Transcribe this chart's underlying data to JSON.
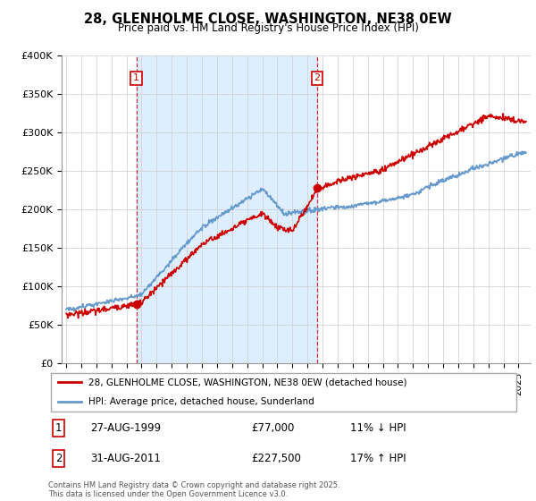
{
  "title": "28, GLENHOLME CLOSE, WASHINGTON, NE38 0EW",
  "subtitle": "Price paid vs. HM Land Registry's House Price Index (HPI)",
  "red_line_label": "28, GLENHOLME CLOSE, WASHINGTON, NE38 0EW (detached house)",
  "blue_line_label": "HPI: Average price, detached house, Sunderland",
  "sale1_label": "1",
  "sale1_date": "27-AUG-1999",
  "sale1_price": "£77,000",
  "sale1_hpi": "11% ↓ HPI",
  "sale2_label": "2",
  "sale2_date": "31-AUG-2011",
  "sale2_price": "£227,500",
  "sale2_hpi": "17% ↑ HPI",
  "ylabel_ticks": [
    "£0",
    "£50K",
    "£100K",
    "£150K",
    "£200K",
    "£250K",
    "£300K",
    "£350K",
    "£400K"
  ],
  "ytick_values": [
    0,
    50000,
    100000,
    150000,
    200000,
    250000,
    300000,
    350000,
    400000
  ],
  "footer": "Contains HM Land Registry data © Crown copyright and database right 2025.\nThis data is licensed under the Open Government Licence v3.0.",
  "red_color": "#cc0000",
  "blue_color": "#6699cc",
  "shade_color": "#ddeeff",
  "marker1_year": 1999.65,
  "marker1_value": 77000,
  "marker2_year": 2011.65,
  "marker2_value": 227500,
  "vline1_year": 1999.65,
  "vline2_year": 2011.65,
  "xmin": 1995.0,
  "xmax": 2025.5
}
